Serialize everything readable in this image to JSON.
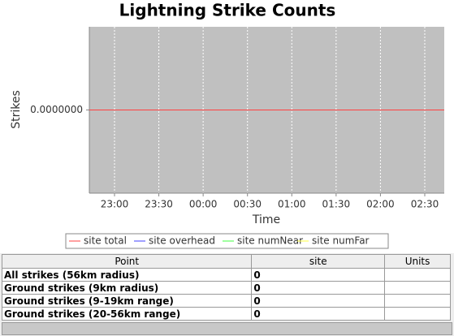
{
  "chart_data": {
    "type": "line",
    "title": "Lightning Strike Counts",
    "y_label": "Strikes",
    "x_label": "Time",
    "xlim": [
      22.716,
      26.72
    ],
    "xticks": [
      {
        "value": 23.0,
        "label": "23:00"
      },
      {
        "value": 23.5,
        "label": "23:30"
      },
      {
        "value": 24.0,
        "label": "00:00"
      },
      {
        "value": 24.5,
        "label": "00:30"
      },
      {
        "value": 25.0,
        "label": "01:00"
      },
      {
        "value": 25.5,
        "label": "01:30"
      },
      {
        "value": 26.0,
        "label": "02:00"
      },
      {
        "value": 26.5,
        "label": "02:30"
      }
    ],
    "ylim": [
      -1,
      1
    ],
    "yticks": [
      {
        "value": 0,
        "label": "0.0000000"
      }
    ],
    "x": [
      22.716,
      26.72
    ],
    "series": [
      {
        "name": "site total",
        "color": "#ff4040",
        "values": [
          0,
          0
        ]
      },
      {
        "name": "site overhead",
        "color": "#4040ff",
        "values": [
          0,
          0
        ]
      },
      {
        "name": "site numNear",
        "color": "#40ff40",
        "values": [
          0,
          0
        ]
      },
      {
        "name": "site numFar",
        "color": "#ffff40",
        "values": [
          0,
          0
        ]
      }
    ],
    "grid": true
  },
  "table": {
    "columns": [
      "Point",
      "site",
      "Units"
    ],
    "rows": [
      [
        "All strikes (56km radius)",
        "0",
        ""
      ],
      [
        "Ground strikes (9km radius)",
        "0",
        ""
      ],
      [
        "Ground strikes (9-19km range)",
        "0",
        ""
      ],
      [
        "Ground strikes (20-56km range)",
        "0",
        ""
      ]
    ]
  }
}
